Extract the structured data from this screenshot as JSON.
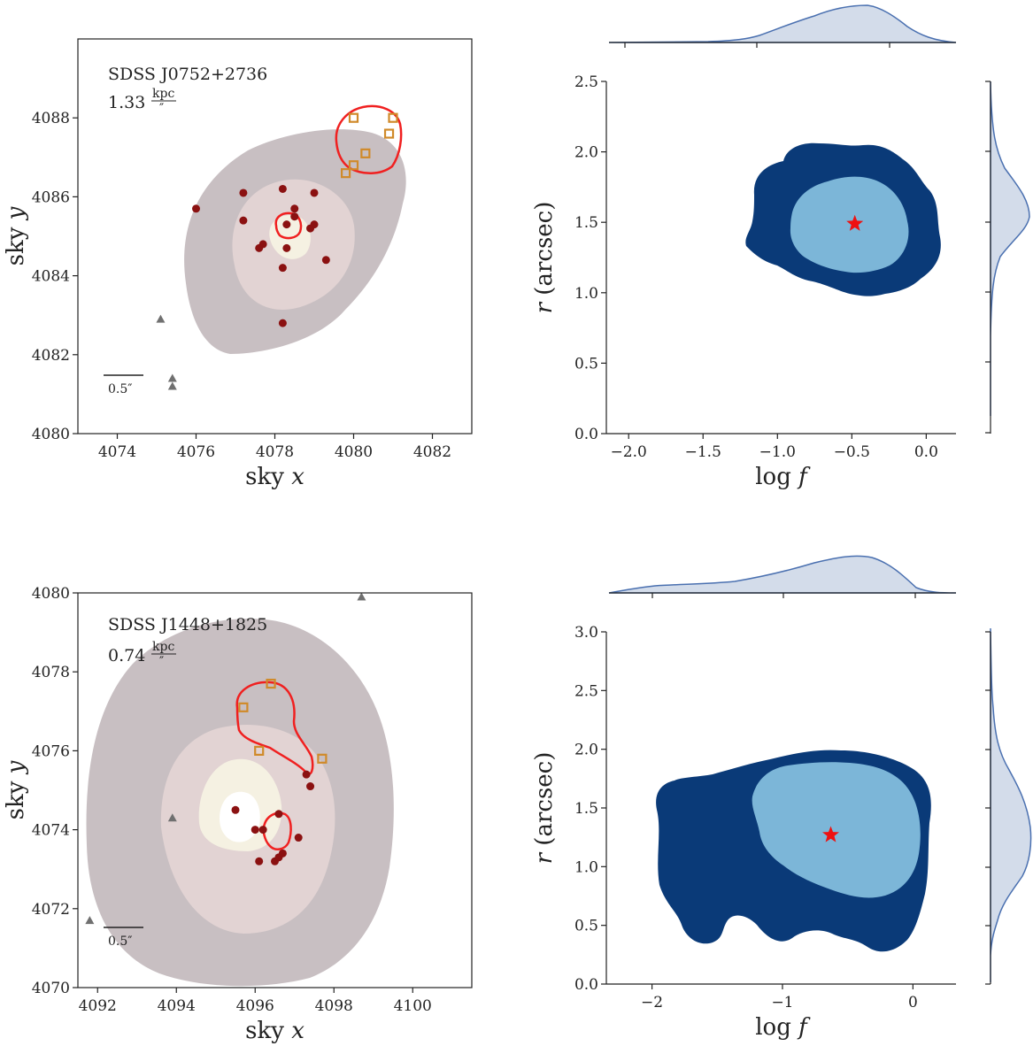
{
  "colors": {
    "contour_outer": "#c8bfc2",
    "contour_mid": "#e2d3d3",
    "contour_inner": "#f5f1e2",
    "contour_core": "#ffffff",
    "red_contour": "#f02020",
    "dot": "#8b1111",
    "square": "#d08a2a",
    "triangle": "#707070",
    "post_outer": "#0a3a78",
    "post_inner": "#7cb6d8",
    "marginal_fill": "#d3dcea",
    "marginal_line": "#4a70b0",
    "star": "#ee1111"
  },
  "chart_data": [
    {
      "type": "scatter",
      "panel": "top-left",
      "annotation_name": "SDSS J0752+2736",
      "annotation_scale": "1.33",
      "annotation_unit_num": "kpc",
      "annotation_unit_den": "″",
      "scalebar_label": "0.5″",
      "xlabel": "sky x",
      "ylabel": "sky y",
      "xlim": [
        4073,
        4083
      ],
      "ylim": [
        4080,
        4090
      ],
      "xticks": [
        4074,
        4076,
        4078,
        4080,
        4082
      ],
      "yticks": [
        4080,
        4082,
        4084,
        4086,
        4088
      ],
      "dots": [
        [
          4076.0,
          4085.7
        ],
        [
          4077.2,
          4086.1
        ],
        [
          4077.2,
          4085.4
        ],
        [
          4078.2,
          4086.2
        ],
        [
          4079.0,
          4086.1
        ],
        [
          4078.3,
          4085.3
        ],
        [
          4078.5,
          4085.5
        ],
        [
          4078.5,
          4085.7
        ],
        [
          4078.9,
          4085.2
        ],
        [
          4079.0,
          4085.3
        ],
        [
          4077.7,
          4084.8
        ],
        [
          4077.6,
          4084.7
        ],
        [
          4078.3,
          4084.7
        ],
        [
          4078.2,
          4084.2
        ],
        [
          4079.3,
          4084.4
        ],
        [
          4078.2,
          4082.8
        ]
      ],
      "squares": [
        [
          4080.0,
          4088.0
        ],
        [
          4081.0,
          4088.0
        ],
        [
          4080.9,
          4087.6
        ],
        [
          4080.3,
          4087.1
        ],
        [
          4080.0,
          4086.8
        ],
        [
          4079.8,
          4086.6
        ]
      ],
      "triangles": [
        [
          4075.1,
          4082.9
        ],
        [
          4075.4,
          4081.4
        ],
        [
          4075.4,
          4081.2
        ]
      ]
    },
    {
      "type": "scatter",
      "panel": "bottom-left",
      "annotation_name": "SDSS J1448+1825",
      "annotation_scale": "0.74",
      "annotation_unit_num": "kpc",
      "annotation_unit_den": "″",
      "scalebar_label": "0.5″",
      "xlabel": "sky x",
      "ylabel": "sky y",
      "xlim": [
        4091.5,
        4101.5
      ],
      "ylim": [
        4070,
        4080
      ],
      "xticks": [
        4092,
        4094,
        4096,
        4098,
        4100
      ],
      "yticks": [
        4070,
        4072,
        4074,
        4076,
        4078,
        4080
      ],
      "dots": [
        [
          4095.5,
          4074.5
        ],
        [
          4096.0,
          4074.0
        ],
        [
          4096.2,
          4074.0
        ],
        [
          4096.6,
          4074.4
        ],
        [
          4097.3,
          4075.4
        ],
        [
          4097.4,
          4075.1
        ],
        [
          4097.1,
          4073.8
        ],
        [
          4096.1,
          4073.2
        ],
        [
          4096.5,
          4073.2
        ],
        [
          4096.6,
          4073.3
        ],
        [
          4096.7,
          4073.4
        ]
      ],
      "squares": [
        [
          4096.4,
          4077.7
        ],
        [
          4095.7,
          4077.1
        ],
        [
          4096.1,
          4076.0
        ],
        [
          4097.7,
          4075.8
        ]
      ],
      "triangles": [
        [
          4091.8,
          4071.7
        ],
        [
          4093.9,
          4074.3
        ],
        [
          4098.7,
          4079.9
        ]
      ]
    },
    {
      "type": "heatmap",
      "panel": "top-right",
      "xlabel": "log f",
      "ylabel": "r (arcsec)",
      "xlim": [
        -2.15,
        0.2
      ],
      "ylim": [
        0,
        2.5
      ],
      "xticks": [
        -2.0,
        -1.5,
        -1.0,
        -0.5,
        0.0
      ],
      "xtick_labels": [
        "−2.0",
        "−1.5",
        "−1.0",
        "−0.5",
        "0.0"
      ],
      "yticks": [
        0.0,
        0.5,
        1.0,
        1.5,
        2.0,
        2.5
      ],
      "ytick_labels": [
        "0.0",
        "0.5",
        "1.0",
        "1.5",
        "2.0",
        "2.5"
      ],
      "best_fit": [
        -0.48,
        1.49
      ]
    },
    {
      "type": "heatmap",
      "panel": "bottom-right",
      "xlabel": "log f",
      "ylabel": "r (arcsec)",
      "xlim": [
        -2.35,
        0.33
      ],
      "ylim": [
        0,
        3.0
      ],
      "xticks": [
        -2,
        -1,
        0
      ],
      "xtick_labels": [
        "−2",
        "−1",
        "0"
      ],
      "yticks": [
        0.0,
        0.5,
        1.0,
        1.5,
        2.0,
        2.5,
        3.0
      ],
      "ytick_labels": [
        "0.0",
        "0.5",
        "1.0",
        "1.5",
        "2.0",
        "2.5",
        "3.0"
      ],
      "best_fit": [
        -0.63,
        1.27
      ]
    }
  ]
}
